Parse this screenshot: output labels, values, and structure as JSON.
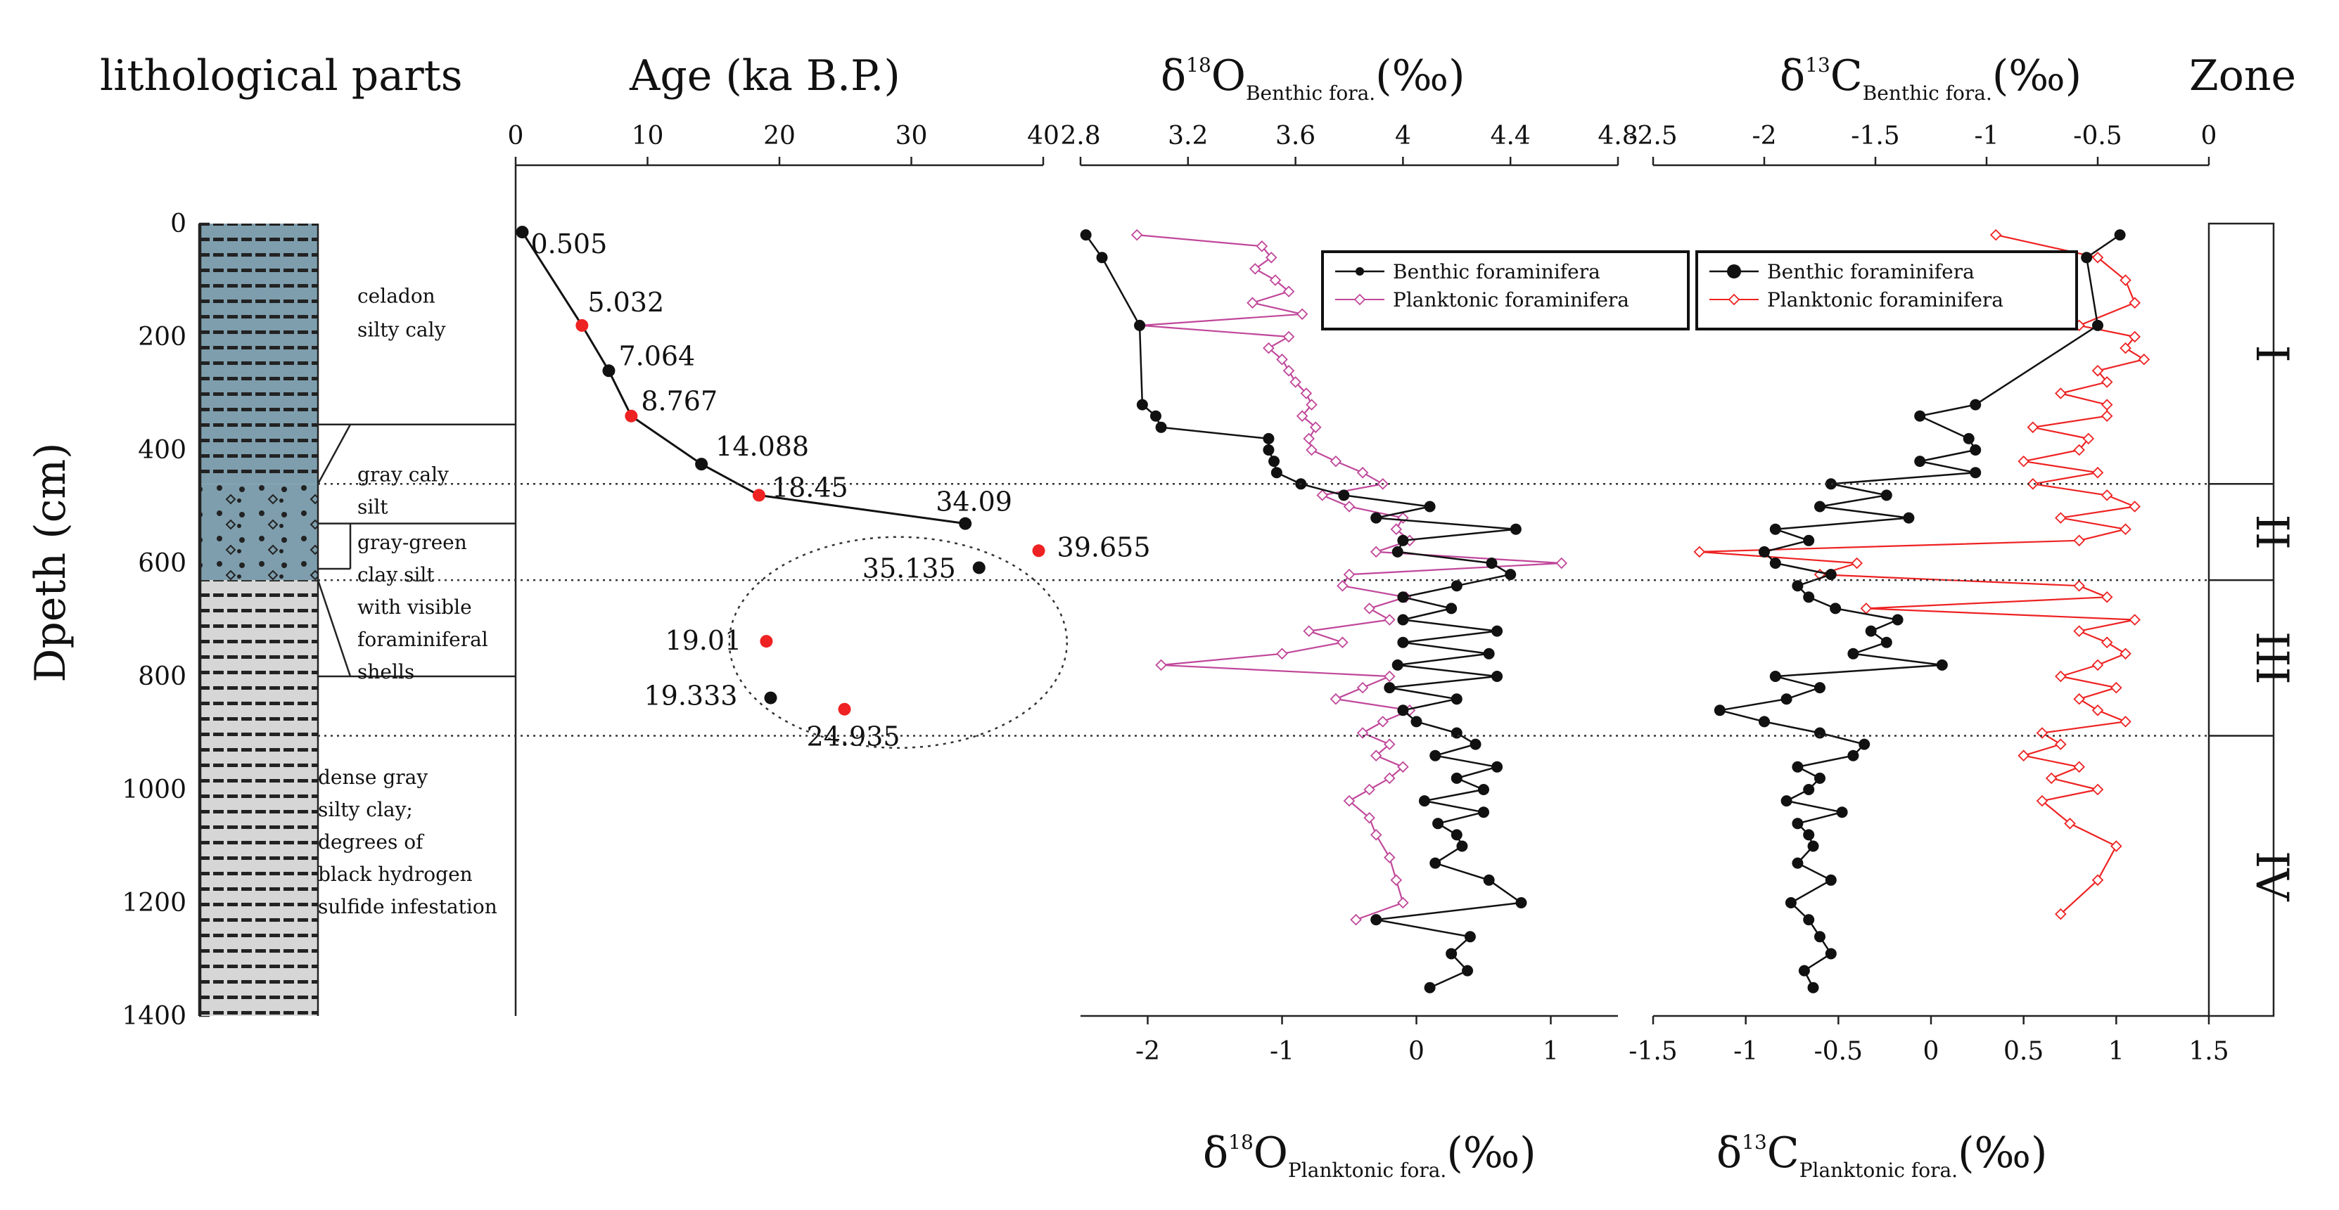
{
  "chart_data": {
    "type": "multi-panel",
    "ylabel": "Dpeth (cm)",
    "ylim": [
      0,
      1400
    ],
    "yticks": [
      "0",
      "200",
      "400",
      "600",
      "800",
      "1000",
      "1200",
      "1400"
    ],
    "lithology": {
      "title": "lithological parts",
      "units": [
        {
          "name": "celadon silty caly",
          "lines": [
            "celadon",
            "silty caly"
          ],
          "top": 0,
          "bottom": 460
        },
        {
          "name": "gray caly silt",
          "lines": [
            "gray caly",
            "silt"
          ],
          "top": 460,
          "bottom": 530
        },
        {
          "name": "gray-green clay silt with visible foraminiferal shells",
          "lines": [
            "gray-green",
            "clay silt",
            "with visible",
            "foraminiferal",
            "shells"
          ],
          "top": 530,
          "bottom": 630
        },
        {
          "name": "dense gray silty clay; degrees of black hydrogen sulfide infestation",
          "lines": [
            "dense gray",
            "silty clay;",
            "degrees of",
            "black hydrogen",
            "sulfide infestation"
          ],
          "top": 630,
          "bottom": 1400
        }
      ]
    },
    "age": {
      "title": "Age (ka B.P.)",
      "xlim": [
        0,
        40
      ],
      "xticks": [
        "0",
        "10",
        "20",
        "30",
        "40"
      ],
      "line_points": [
        {
          "age": 0.505,
          "depth": 15,
          "label": "0.505",
          "color": "black"
        },
        {
          "age": 5.032,
          "depth": 180,
          "label": "5.032",
          "color": "red"
        },
        {
          "age": 7.064,
          "depth": 260,
          "label": "7.064",
          "color": "black"
        },
        {
          "age": 8.767,
          "depth": 340,
          "label": "8.767",
          "color": "red"
        },
        {
          "age": 14.088,
          "depth": 425,
          "label": "14.088",
          "color": "black"
        },
        {
          "age": 18.45,
          "depth": 480,
          "label": "18.45",
          "color": "red"
        },
        {
          "age": 34.09,
          "depth": 530,
          "label": "34.09",
          "color": "black"
        }
      ],
      "outliers": [
        {
          "age": 39.655,
          "depth": 578,
          "label": "39.655",
          "color": "red"
        },
        {
          "age": 35.135,
          "depth": 608,
          "label": "35.135",
          "color": "black"
        },
        {
          "age": 19.01,
          "depth": 738,
          "label": "19.01",
          "color": "red"
        },
        {
          "age": 19.333,
          "depth": 838,
          "label": "19.333",
          "color": "black"
        },
        {
          "age": 24.935,
          "depth": 858,
          "label": "24.935",
          "color": "red"
        }
      ]
    },
    "d18O": {
      "title_main": "δ",
      "title_sup": "18",
      "title_O": "O",
      "title_sub": "Benthic fora.",
      "title_unit": "(‰)",
      "bottom_sub": "Planktonic fora.",
      "top_xlim": [
        2.8,
        4.8
      ],
      "top_xticks": [
        "2.8",
        "3.2",
        "3.6",
        "4",
        "4.4",
        "4.8"
      ],
      "bottom_xlim": [
        -2.5,
        1.5
      ],
      "bottom_xticks": [
        "-2",
        "-1",
        "0",
        "1"
      ],
      "legend": [
        "Benthic foraminifera",
        "Planktonic foraminifera"
      ],
      "benthic": {
        "depth": [
          20,
          60,
          180,
          320,
          340,
          360,
          380,
          400,
          420,
          440,
          460,
          480,
          500,
          520,
          540,
          560,
          580,
          600,
          620,
          640,
          660,
          680,
          700,
          720,
          740,
          760,
          780,
          800,
          820,
          840,
          860,
          880,
          900,
          920,
          940,
          960,
          980,
          1000,
          1020,
          1040,
          1060,
          1080,
          1100,
          1130,
          1160,
          1200,
          1230,
          1260,
          1290,
          1320,
          1350
        ],
        "value": [
          2.82,
          2.88,
          3.02,
          3.03,
          3.08,
          3.1,
          3.5,
          3.5,
          3.52,
          3.53,
          3.62,
          3.78,
          4.1,
          3.9,
          4.42,
          4.0,
          3.98,
          4.33,
          4.4,
          4.2,
          4.0,
          4.18,
          4.0,
          4.35,
          4.0,
          4.32,
          3.98,
          4.35,
          3.95,
          4.2,
          4.0,
          4.05,
          4.2,
          4.27,
          4.12,
          4.35,
          4.2,
          4.3,
          4.08,
          4.3,
          4.13,
          4.2,
          4.22,
          4.12,
          4.32,
          4.44,
          3.9,
          4.25,
          4.18,
          4.24,
          4.1
        ],
        "legend_label": "Benthic foraminifera"
      },
      "planktonic": {
        "depth": [
          20,
          40,
          60,
          80,
          100,
          120,
          140,
          160,
          180,
          200,
          220,
          240,
          260,
          280,
          300,
          320,
          340,
          360,
          380,
          400,
          420,
          440,
          460,
          480,
          500,
          520,
          540,
          560,
          580,
          600,
          620,
          640,
          660,
          680,
          700,
          720,
          740,
          760,
          780,
          800,
          820,
          840,
          860,
          880,
          900,
          920,
          940,
          960,
          980,
          1000,
          1020,
          1050,
          1080,
          1120,
          1160,
          1200,
          1230
        ],
        "value": [
          -2.08,
          -1.15,
          -1.08,
          -1.2,
          -1.05,
          -0.95,
          -1.22,
          -0.85,
          -2.05,
          -0.95,
          -1.1,
          -1.0,
          -0.95,
          -0.9,
          -0.82,
          -0.78,
          -0.85,
          -0.75,
          -0.8,
          -0.78,
          -0.6,
          -0.4,
          -0.25,
          -0.7,
          -0.5,
          -0.1,
          -0.15,
          -0.05,
          -0.3,
          1.08,
          -0.5,
          -0.55,
          -0.08,
          -0.35,
          -0.2,
          -0.8,
          -0.55,
          -1.0,
          -1.9,
          -0.2,
          -0.4,
          -0.6,
          -0.05,
          -0.25,
          -0.4,
          -0.2,
          -0.3,
          -0.1,
          -0.2,
          -0.35,
          -0.5,
          -0.35,
          -0.3,
          -0.2,
          -0.15,
          -0.1,
          -0.45
        ],
        "legend_label": "Planktonic foraminifera"
      }
    },
    "d13C": {
      "title_main": "δ",
      "title_sup": "13",
      "title_C": "C",
      "title_sub": "Benthic fora.",
      "title_unit": "(‰)",
      "bottom_sub": "Planktonic fora.",
      "top_xlim": [
        -2.5,
        0
      ],
      "top_xticks": [
        "-2.5",
        "-2",
        "-1.5",
        "-1",
        "-0.5",
        "0"
      ],
      "bottom_xlim": [
        -1.5,
        1.5
      ],
      "bottom_xticks": [
        "-1.5",
        "-1",
        "-0.5",
        "0",
        "0.5",
        "1",
        "1.5"
      ],
      "legend": [
        "Benthic foraminifera",
        "Planktonic foraminifera"
      ],
      "benthic": {
        "depth": [
          20,
          60,
          180,
          320,
          340,
          380,
          400,
          420,
          440,
          460,
          480,
          500,
          520,
          540,
          560,
          580,
          600,
          620,
          640,
          660,
          680,
          700,
          720,
          740,
          760,
          780,
          800,
          820,
          840,
          860,
          880,
          900,
          920,
          940,
          960,
          980,
          1000,
          1020,
          1040,
          1060,
          1080,
          1100,
          1130,
          1160,
          1200,
          1230,
          1260,
          1290,
          1320,
          1350
        ],
        "value": [
          -0.4,
          -0.55,
          -0.5,
          -1.05,
          -1.3,
          -1.08,
          -1.05,
          -1.3,
          -1.05,
          -1.7,
          -1.45,
          -1.75,
          -1.35,
          -1.95,
          -1.8,
          -2.0,
          -1.95,
          -1.7,
          -1.85,
          -1.8,
          -1.68,
          -1.4,
          -1.52,
          -1.45,
          -1.6,
          -1.2,
          -1.95,
          -1.75,
          -1.9,
          -2.2,
          -2.0,
          -1.75,
          -1.55,
          -1.6,
          -1.85,
          -1.75,
          -1.8,
          -1.9,
          -1.65,
          -1.85,
          -1.8,
          -1.78,
          -1.85,
          -1.7,
          -1.88,
          -1.8,
          -1.75,
          -1.7,
          -1.82,
          -1.78
        ],
        "legend_label": "Benthic foraminifera"
      },
      "planktonic": {
        "depth": [
          20,
          60,
          100,
          140,
          180,
          200,
          220,
          240,
          260,
          280,
          300,
          320,
          340,
          360,
          380,
          400,
          420,
          440,
          460,
          480,
          500,
          520,
          540,
          560,
          580,
          600,
          620,
          640,
          660,
          680,
          700,
          720,
          740,
          760,
          780,
          800,
          820,
          840,
          860,
          880,
          900,
          920,
          940,
          960,
          980,
          1000,
          1020,
          1060,
          1100,
          1160,
          1220
        ],
        "value": [
          0.35,
          0.9,
          1.05,
          1.1,
          0.8,
          1.1,
          1.05,
          1.15,
          0.9,
          0.95,
          0.7,
          0.95,
          0.95,
          0.55,
          0.85,
          0.8,
          0.5,
          0.9,
          0.55,
          0.95,
          1.1,
          0.7,
          1.05,
          0.8,
          -1.25,
          -0.4,
          -0.6,
          0.8,
          0.95,
          -0.35,
          1.1,
          0.8,
          0.95,
          1.05,
          0.9,
          0.7,
          1.0,
          0.8,
          0.9,
          1.05,
          0.6,
          0.7,
          0.5,
          0.8,
          0.65,
          0.9,
          0.6,
          0.75,
          1.0,
          0.9,
          0.7
        ],
        "legend_label": "Planktonic foraminifera"
      }
    },
    "zones": {
      "title": "Zone",
      "items": [
        {
          "label": "I",
          "top": 0,
          "bottom": 460
        },
        {
          "label": "II",
          "top": 460,
          "bottom": 630
        },
        {
          "label": "III",
          "top": 630,
          "bottom": 905
        },
        {
          "label": "IV",
          "top": 905,
          "bottom": 1400
        }
      ]
    },
    "zone_boundaries": [
      460,
      630,
      905
    ]
  }
}
